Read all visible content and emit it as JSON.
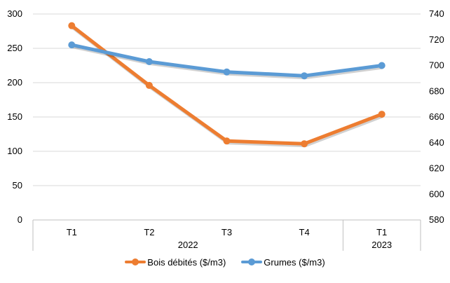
{
  "chart_data": {
    "type": "line",
    "title": "",
    "categories": [
      "T1",
      "T2",
      "T3",
      "T4",
      "T1"
    ],
    "category_groups": [
      {
        "label": "2022",
        "span": 4
      },
      {
        "label": "2023",
        "span": 1
      }
    ],
    "series": [
      {
        "name": "Bois débités ($/m3)",
        "axis": "left",
        "color": "#ED7D31",
        "values": [
          283,
          196,
          115,
          111,
          154
        ]
      },
      {
        "name": "Grumes ($/m3)",
        "axis": "right",
        "color": "#5B9BD5",
        "values": [
          716,
          703,
          695,
          692,
          700
        ]
      }
    ],
    "y_left": {
      "min": 0,
      "max": 300,
      "step": 50,
      "ticks": [
        "0",
        "50",
        "100",
        "150",
        "200",
        "250",
        "300"
      ]
    },
    "y_right": {
      "min": 580,
      "max": 740,
      "step": 20,
      "ticks": [
        "580",
        "600",
        "620",
        "640",
        "660",
        "680",
        "700",
        "720",
        "740"
      ]
    },
    "grid": "horizontal",
    "legend_position": "bottom"
  }
}
